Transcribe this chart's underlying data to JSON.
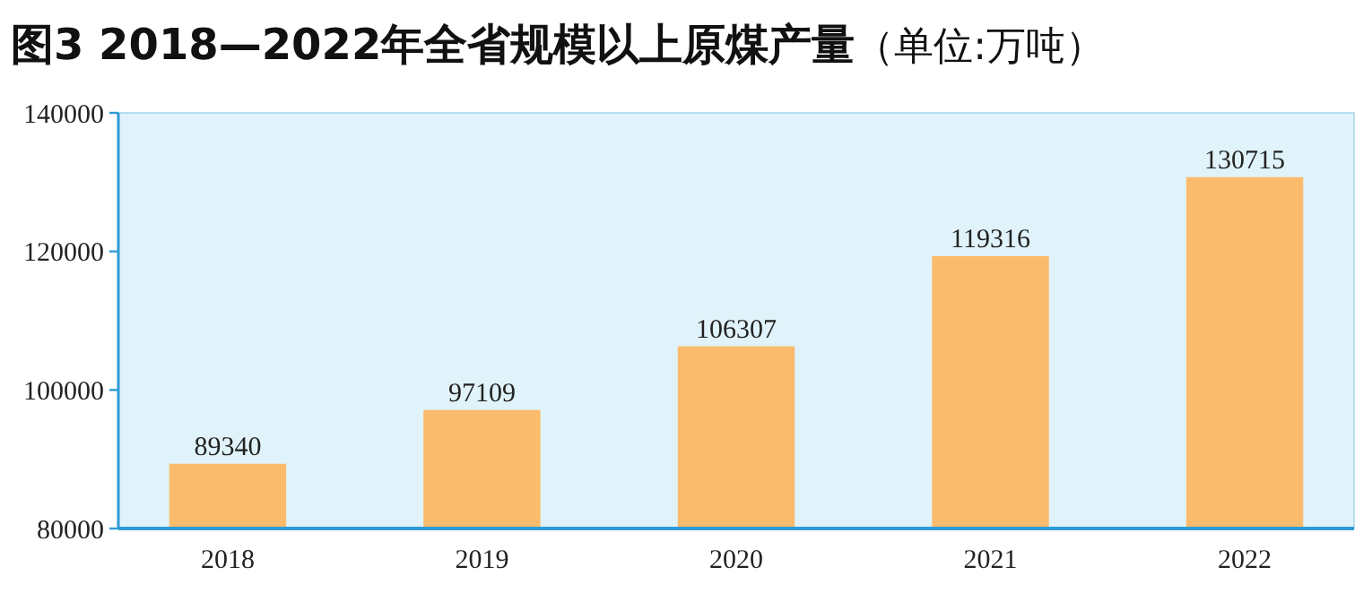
{
  "chart_data": {
    "type": "bar",
    "title": "图3  2018—2022年全省规模以上原煤产量",
    "subtitle": "（单位:万吨）",
    "categories": [
      "2018",
      "2019",
      "2020",
      "2021",
      "2022"
    ],
    "values": [
      89340,
      97109,
      106307,
      119316,
      130715
    ],
    "color": "#fbbb6c",
    "ylim": [
      80000,
      140000
    ],
    "yticks": [
      80000,
      100000,
      120000,
      140000
    ],
    "grid": false,
    "data_labels": true
  }
}
